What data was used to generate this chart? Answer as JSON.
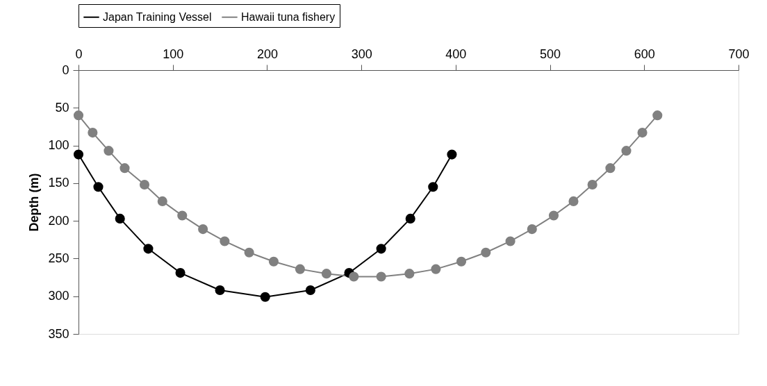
{
  "chart_data": {
    "type": "line",
    "ylabel": "Depth (m)",
    "xlim": [
      0,
      700
    ],
    "xticks": [
      0,
      100,
      200,
      300,
      400,
      500,
      600,
      700
    ],
    "ylim": [
      350,
      0
    ],
    "yticks": [
      0,
      50,
      100,
      150,
      200,
      250,
      300,
      350
    ],
    "grid": false,
    "legend": "top",
    "marker": "circle",
    "line_style": "solid",
    "series": [
      {
        "name": "Japan Training Vessel",
        "color": "#000000",
        "x": [
          0,
          21,
          44,
          74,
          108,
          150,
          198,
          246,
          287,
          321,
          352,
          376,
          396
        ],
        "values": [
          112,
          155,
          197,
          237,
          269,
          292,
          301,
          292,
          269,
          237,
          197,
          155,
          112
        ]
      },
      {
        "name": "Hawaii tuna fishery",
        "color": "#808080",
        "x": [
          0,
          15,
          32,
          49,
          70,
          89,
          110,
          132,
          155,
          181,
          207,
          235,
          263,
          292,
          321,
          351,
          379,
          406,
          432,
          458,
          481,
          504,
          525,
          545,
          564,
          581,
          598,
          614
        ],
        "values": [
          60,
          83,
          107,
          130,
          152,
          174,
          193,
          211,
          227,
          242,
          254,
          264,
          270,
          274,
          274,
          270,
          264,
          254,
          242,
          227,
          211,
          193,
          174,
          152,
          130,
          107,
          83,
          60
        ]
      }
    ]
  }
}
